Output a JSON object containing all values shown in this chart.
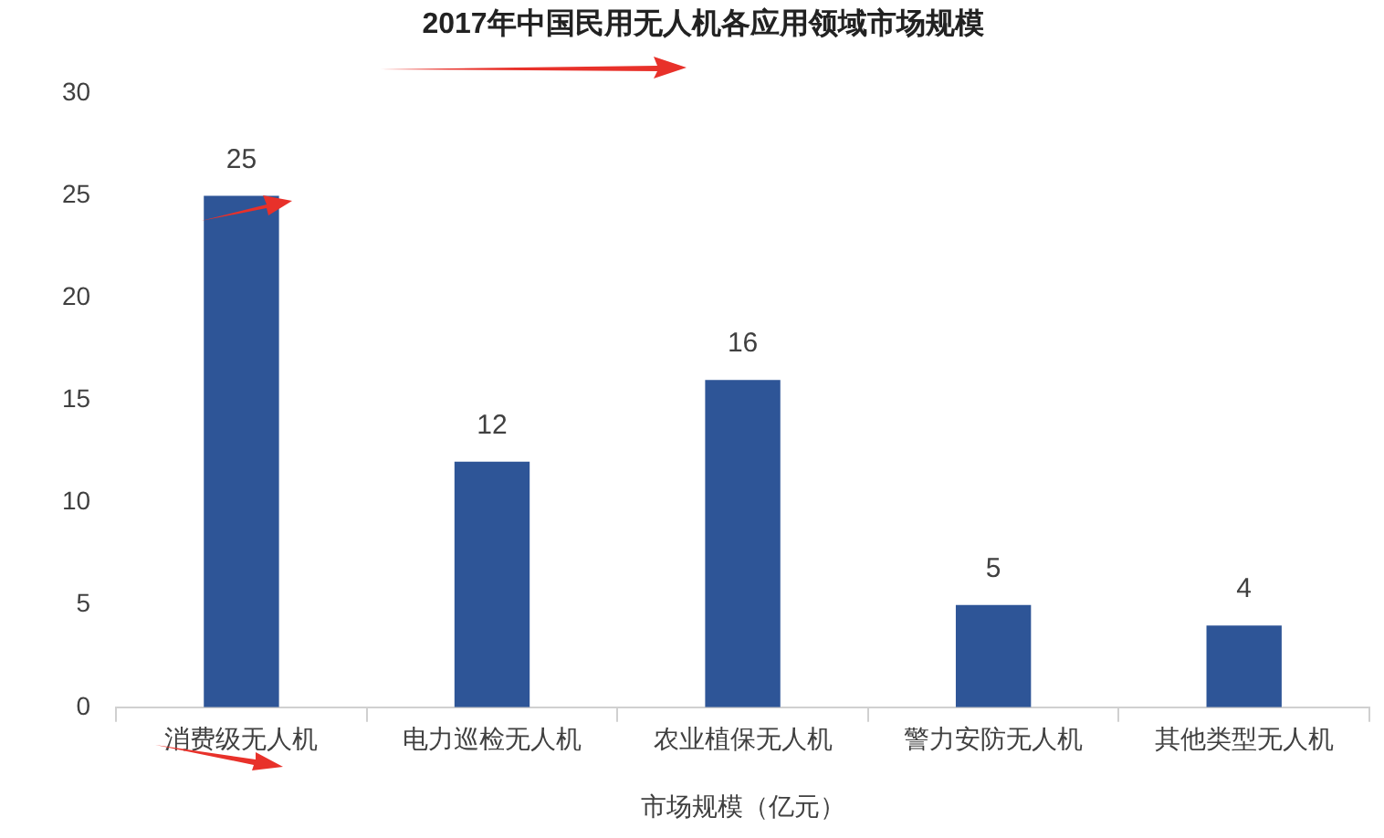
{
  "chart_data": {
    "type": "bar",
    "title": "2017年中国民用无人机各应用领域市场规模",
    "xlabel": "市场规模（亿元）",
    "categories": [
      "消费级无人机",
      "电力巡检无人机",
      "农业植保无人机",
      "警力安防无人机",
      "其他类型无人机"
    ],
    "values": [
      25,
      12,
      16,
      5,
      4
    ],
    "color": "#2e5597",
    "ylim": [
      0,
      30
    ],
    "yticks": [
      0,
      5,
      10,
      15,
      20,
      25,
      30
    ],
    "grid": false,
    "data_labels": true
  }
}
